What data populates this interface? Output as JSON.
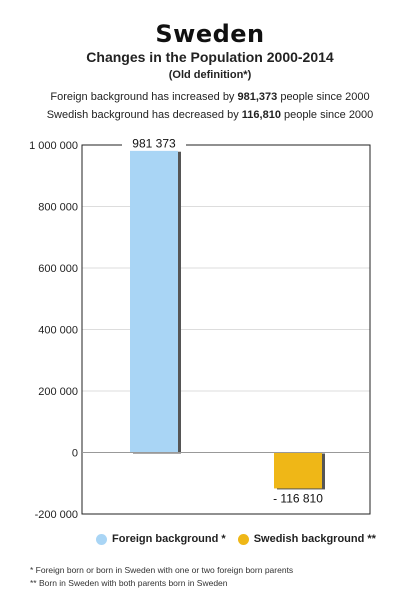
{
  "header": {
    "title": "Sweden",
    "subtitle": "Changes in the Population 2000-2014",
    "note": "(Old definition*)",
    "stat1": {
      "prefix": "Foreign background has increased by ",
      "value": "981,373",
      "suffix": " people since 2000"
    },
    "stat2": {
      "prefix": "Swedish background has decreased by ",
      "value": "116,810",
      "suffix": " people since 2000"
    }
  },
  "colors": {
    "foreign": "#a9d5f5",
    "swedish": "#efb717",
    "shadow": "#555555"
  },
  "chart_data": {
    "type": "bar",
    "categories": [
      "Foreign background *",
      "Swedish background **"
    ],
    "values": [
      981373,
      -116810
    ],
    "data_labels": [
      "981 373",
      "- 116 810"
    ],
    "ylim": [
      -200000,
      1000000
    ],
    "yticks": [
      -200000,
      0,
      200000,
      400000,
      600000,
      800000,
      1000000
    ],
    "ytick_labels": [
      "-200 000",
      "0",
      "200 000",
      "400 000",
      "600 000",
      "800 000",
      "1 000 000"
    ],
    "grid": true,
    "legend_position": "bottom"
  },
  "legend": {
    "foreign": "Foreign background *",
    "swedish": "Swedish background **"
  },
  "footnotes": {
    "f1": "* Foreign born or born in Sweden with one or two foreign born parents",
    "f2": "** Born in Sweden with both parents born in Sweden"
  }
}
